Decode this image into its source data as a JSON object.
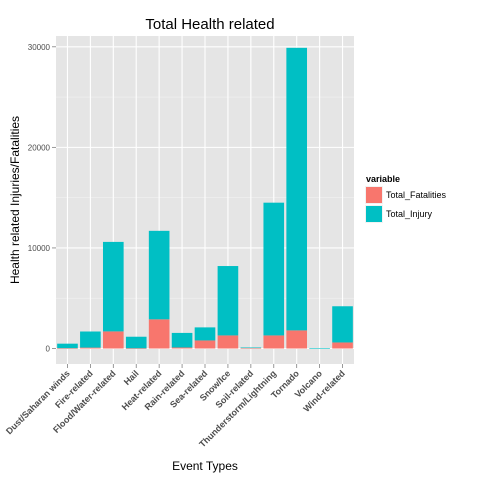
{
  "chart_data": {
    "type": "bar",
    "stacked": true,
    "title": "Total Health related",
    "xlabel": "Event Types",
    "ylabel": "Health related Injuries/Fatalities",
    "ylim": [
      0,
      31000
    ],
    "yticks": [
      0,
      10000,
      20000,
      30000
    ],
    "ytick_labels": [
      "0",
      "10000",
      "20000",
      "30000"
    ],
    "grid": true,
    "legend_position": "right",
    "legend_title": "variable",
    "categories": [
      "Dust/Saharan winds",
      "Fire-related",
      "Flood/Water-related",
      "Hail",
      "Heat-related",
      "Rain-related",
      "Sea-related",
      "Snow/Ice",
      "Soil-related",
      "Thunderstorm/Lightning",
      "Tornado",
      "Volcano",
      "Wind-related"
    ],
    "series": [
      {
        "name": "Total_Fatalities",
        "color": "#F8766D",
        "values": [
          30,
          90,
          1700,
          20,
          2900,
          100,
          800,
          1300,
          50,
          1300,
          1800,
          0,
          600
        ]
      },
      {
        "name": "Total_Injury",
        "color": "#00BFC4",
        "values": [
          450,
          1600,
          8900,
          1150,
          8800,
          1450,
          1300,
          6900,
          50,
          13200,
          28100,
          30,
          3600
        ]
      }
    ]
  }
}
